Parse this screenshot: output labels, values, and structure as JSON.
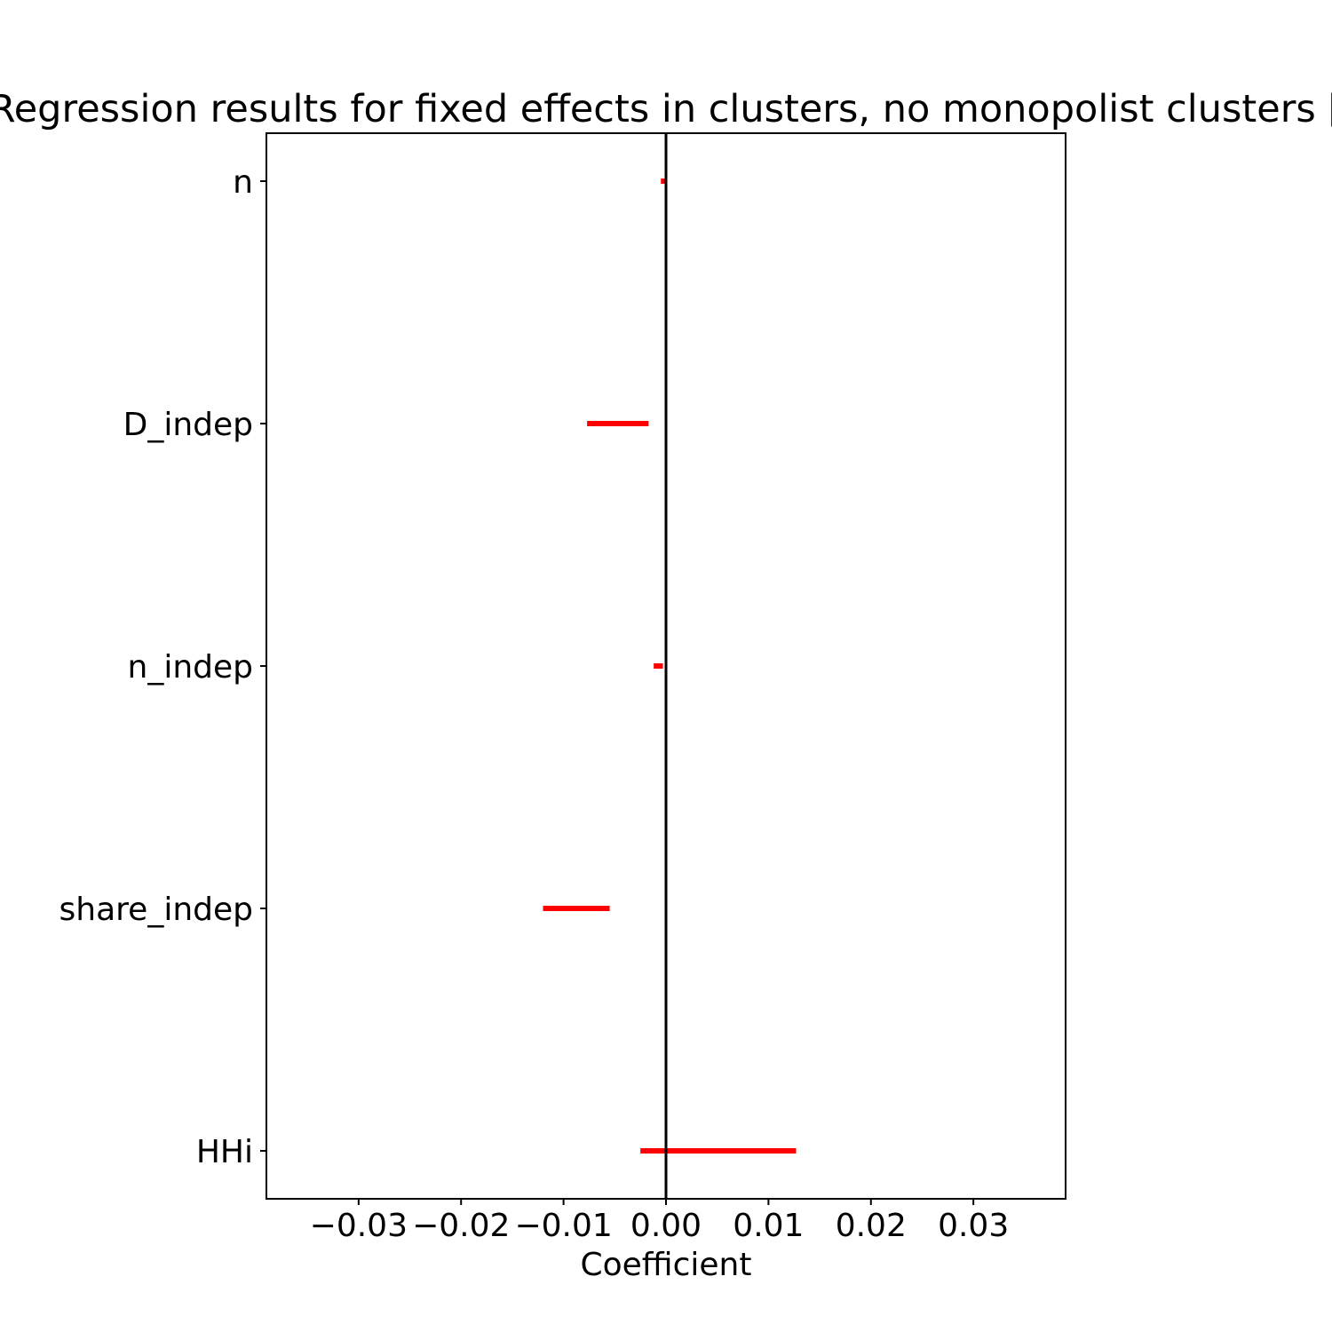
{
  "chart_data": {
    "type": "errorbar",
    "title": "Regression results for fixed effects in clusters, no monopolist clusters [",
    "xlabel": "Coefficient",
    "ylabel": "",
    "xlim": [
      -0.039,
      0.039
    ],
    "x_ticks": [
      -0.03,
      -0.02,
      -0.01,
      0.0,
      0.01,
      0.02,
      0.03
    ],
    "x_tick_labels": [
      "−0.03",
      "−0.02",
      "−0.01",
      "0.00",
      "0.01",
      "0.02",
      "0.03"
    ],
    "categories": [
      "n",
      "D_indep",
      "n_indep",
      "share_indep",
      "HHi"
    ],
    "intervals": [
      {
        "name": "n",
        "low": -0.0005,
        "high": 0.0
      },
      {
        "name": "D_indep",
        "low": -0.0077,
        "high": -0.0017
      },
      {
        "name": "n_indep",
        "low": -0.0012,
        "high": -0.0003
      },
      {
        "name": "share_indep",
        "low": -0.012,
        "high": -0.0055
      },
      {
        "name": "HHi",
        "low": -0.0025,
        "high": 0.0127
      }
    ],
    "reference_line_x": 0.0,
    "interval_color": "#ff0000",
    "reference_color": "#000000",
    "grid": false
  }
}
